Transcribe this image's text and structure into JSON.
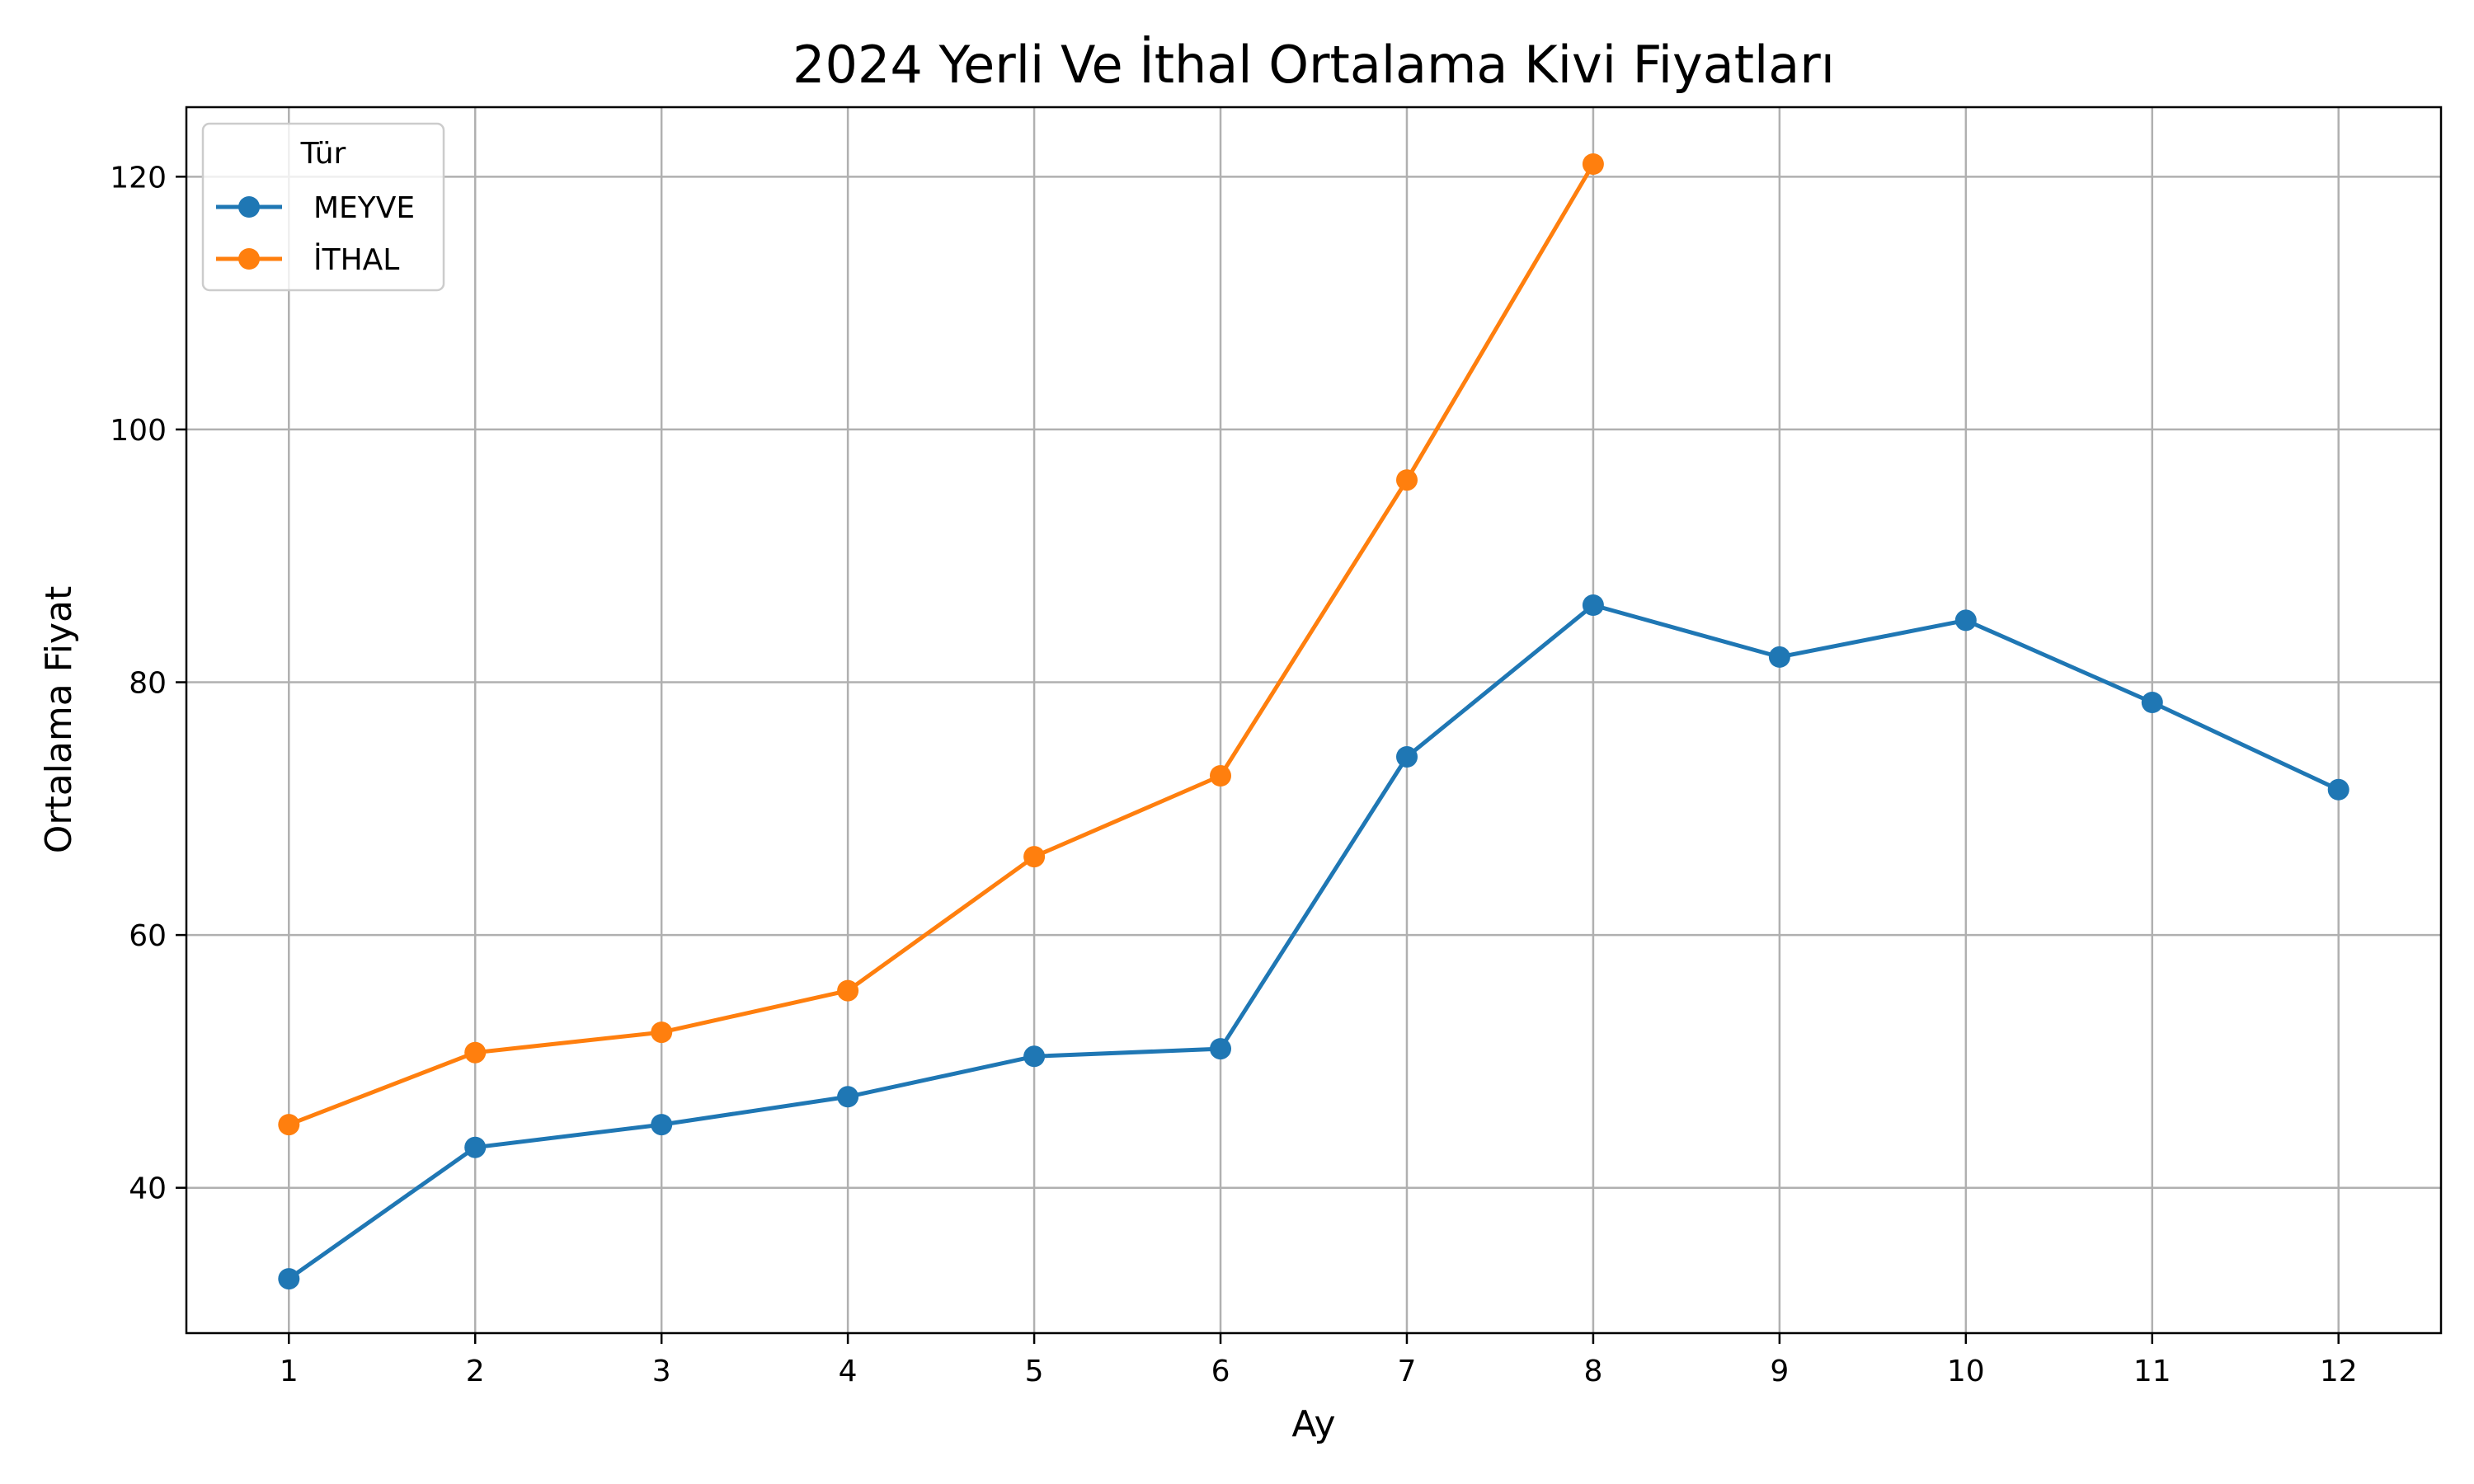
{
  "chart_data": {
    "type": "line",
    "title": "2024 Yerli Ve İthal Ortalama Kivi Fiyatları",
    "xlabel": "Ay",
    "ylabel": "Ortalama Fiyat",
    "x": [
      1,
      2,
      3,
      4,
      5,
      6,
      7,
      8,
      9,
      10,
      11,
      12
    ],
    "xlim": [
      0.45,
      12.55
    ],
    "ylim": [
      28.5,
      125.5
    ],
    "yticks": [
      40,
      60,
      80,
      100,
      120
    ],
    "grid": true,
    "legend": {
      "title": "Tür",
      "position": "top-left"
    },
    "series": [
      {
        "name": "MEYVE",
        "color": "#1f77b4",
        "marker": "circle",
        "values": [
          32.8,
          43.2,
          45.0,
          47.2,
          50.4,
          51.0,
          74.1,
          86.1,
          82.0,
          84.9,
          78.4,
          71.5
        ]
      },
      {
        "name": "İTHAL",
        "color": "#ff7f0e",
        "marker": "circle",
        "values": [
          45.0,
          50.7,
          52.3,
          55.6,
          66.2,
          72.6,
          96.0,
          121.0,
          null,
          null,
          null,
          null
        ]
      }
    ]
  }
}
